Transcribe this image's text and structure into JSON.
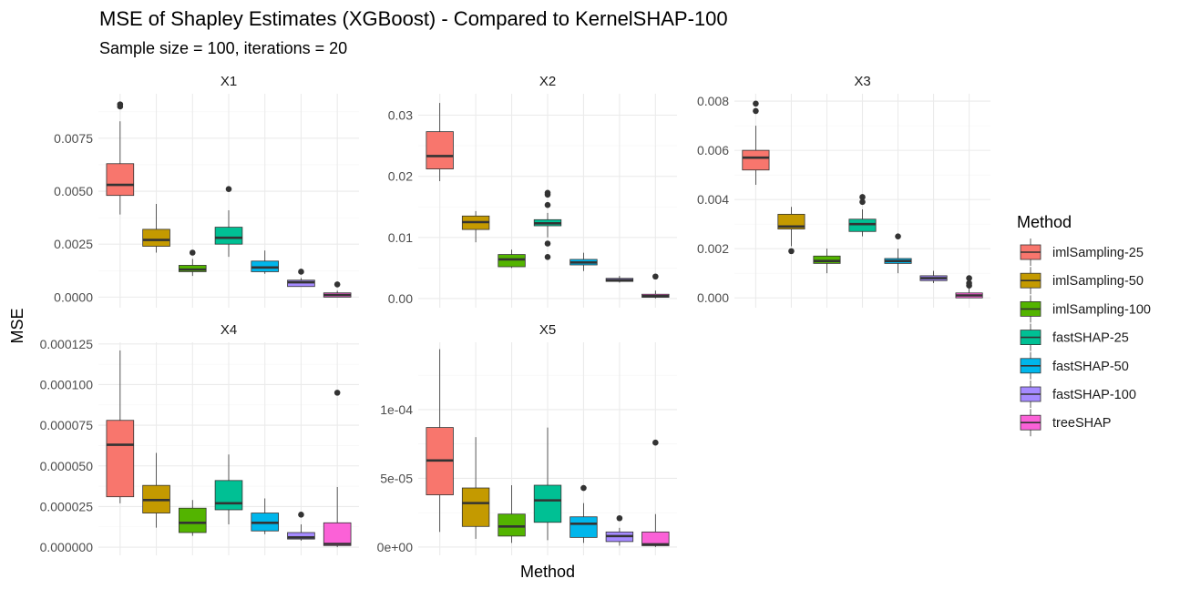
{
  "chart_data": {
    "type": "boxplot",
    "title": "MSE of Shapley Estimates (XGBoost) - Compared to KernelSHAP-100",
    "subtitle": "Sample size = 100, iterations = 20",
    "xlabel": "Method",
    "ylabel": "MSE",
    "legend": {
      "title": "Method",
      "position": "right",
      "items": [
        {
          "label": "imlSampling-25",
          "color": "#F8766D"
        },
        {
          "label": "imlSampling-50",
          "color": "#C49A00"
        },
        {
          "label": "imlSampling-100",
          "color": "#53B400"
        },
        {
          "label": "fastSHAP-25",
          "color": "#00C094"
        },
        {
          "label": "fastSHAP-50",
          "color": "#00B6EB"
        },
        {
          "label": "fastSHAP-100",
          "color": "#A58AFF"
        },
        {
          "label": "treeSHAP",
          "color": "#FB61D7"
        }
      ]
    },
    "panels": [
      {
        "name": "X1",
        "ylim": [
          -0.0005,
          0.0096
        ],
        "ticks": [
          0,
          0.0025,
          0.005,
          0.0075
        ],
        "tick_labels": [
          "0.0000",
          "0.0025",
          "0.0050",
          "0.0075"
        ],
        "boxes": [
          {
            "min": 0.0039,
            "q1": 0.0048,
            "median": 0.0053,
            "q3": 0.0063,
            "max": 0.0083,
            "outliers": [
              0.009,
              0.0091
            ]
          },
          {
            "min": 0.0021,
            "q1": 0.0024,
            "median": 0.0027,
            "q3": 0.0032,
            "max": 0.0044,
            "outliers": []
          },
          {
            "min": 0.001,
            "q1": 0.0012,
            "median": 0.0013,
            "q3": 0.0015,
            "max": 0.0018,
            "outliers": [
              0.0021
            ]
          },
          {
            "min": 0.0019,
            "q1": 0.0025,
            "median": 0.0028,
            "q3": 0.0033,
            "max": 0.0041,
            "outliers": [
              0.0051
            ]
          },
          {
            "min": 0.0011,
            "q1": 0.0012,
            "median": 0.0014,
            "q3": 0.0017,
            "max": 0.0022,
            "outliers": []
          },
          {
            "min": 0.0005,
            "q1": 0.0005,
            "median": 0.0007,
            "q3": 0.0008,
            "max": 0.0009,
            "outliers": [
              0.0012
            ]
          },
          {
            "min": 0.0,
            "q1": 0.0,
            "median": 0.0001,
            "q3": 0.0002,
            "max": 0.0003,
            "outliers": [
              0.0006
            ]
          }
        ]
      },
      {
        "name": "X2",
        "ylim": [
          -0.0015,
          0.0335
        ],
        "ticks": [
          0,
          0.01,
          0.02,
          0.03
        ],
        "tick_labels": [
          "0.00",
          "0.01",
          "0.02",
          "0.03"
        ],
        "boxes": [
          {
            "min": 0.0192,
            "q1": 0.0212,
            "median": 0.0233,
            "q3": 0.0273,
            "max": 0.032,
            "outliers": []
          },
          {
            "min": 0.0092,
            "q1": 0.0113,
            "median": 0.0125,
            "q3": 0.0135,
            "max": 0.0143,
            "outliers": []
          },
          {
            "min": 0.005,
            "q1": 0.0052,
            "median": 0.0064,
            "q3": 0.0072,
            "max": 0.008,
            "outliers": []
          },
          {
            "min": 0.01,
            "q1": 0.0119,
            "median": 0.0123,
            "q3": 0.0129,
            "max": 0.014,
            "outliers": [
              0.0068,
              0.009,
              0.0153,
              0.017,
              0.0173
            ]
          },
          {
            "min": 0.0045,
            "q1": 0.0055,
            "median": 0.0059,
            "q3": 0.0064,
            "max": 0.0075,
            "outliers": []
          },
          {
            "min": 0.0026,
            "q1": 0.0028,
            "median": 0.003,
            "q3": 0.0033,
            "max": 0.0037,
            "outliers": []
          },
          {
            "min": 0.0,
            "q1": 0.0002,
            "median": 0.0004,
            "q3": 0.0007,
            "max": 0.0013,
            "outliers": [
              0.0036
            ]
          }
        ]
      },
      {
        "name": "X3",
        "ylim": [
          -0.0004,
          0.0083
        ],
        "ticks": [
          0,
          0.002,
          0.004,
          0.006,
          0.008
        ],
        "tick_labels": [
          "0.000",
          "0.002",
          "0.004",
          "0.006",
          "0.008"
        ],
        "boxes": [
          {
            "min": 0.0046,
            "q1": 0.0052,
            "median": 0.0057,
            "q3": 0.006,
            "max": 0.007,
            "outliers": [
              0.0076,
              0.0079
            ]
          },
          {
            "min": 0.0021,
            "q1": 0.0028,
            "median": 0.0029,
            "q3": 0.0034,
            "max": 0.0037,
            "outliers": [
              0.0019
            ]
          },
          {
            "min": 0.001,
            "q1": 0.0014,
            "median": 0.0015,
            "q3": 0.0017,
            "max": 0.002,
            "outliers": []
          },
          {
            "min": 0.0025,
            "q1": 0.0027,
            "median": 0.003,
            "q3": 0.0032,
            "max": 0.0036,
            "outliers": [
              0.0039,
              0.0041
            ]
          },
          {
            "min": 0.001,
            "q1": 0.0014,
            "median": 0.0015,
            "q3": 0.0016,
            "max": 0.002,
            "outliers": [
              0.0025
            ]
          },
          {
            "min": 0.0006,
            "q1": 0.0007,
            "median": 0.0008,
            "q3": 0.0009,
            "max": 0.0011,
            "outliers": []
          },
          {
            "min": 0.0,
            "q1": 0.0,
            "median": 0.0001,
            "q3": 0.0002,
            "max": 0.0004,
            "outliers": [
              0.0005,
              0.0006,
              0.0008
            ]
          }
        ]
      },
      {
        "name": "X4",
        "ylim": [
          -5e-06,
          0.000126
        ],
        "ticks": [
          0,
          2.5e-05,
          5e-05,
          7.5e-05,
          0.0001,
          0.000125
        ],
        "tick_labels": [
          "0.000000",
          "0.000025",
          "0.000050",
          "0.000075",
          "0.000100",
          "0.000125"
        ],
        "boxes": [
          {
            "min": 2.7e-05,
            "q1": 3.1e-05,
            "median": 6.3e-05,
            "q3": 7.8e-05,
            "max": 0.000121,
            "outliers": []
          },
          {
            "min": 1.2e-05,
            "q1": 2.1e-05,
            "median": 2.9e-05,
            "q3": 3.8e-05,
            "max": 5.8e-05,
            "outliers": []
          },
          {
            "min": 7e-06,
            "q1": 9e-06,
            "median": 1.5e-05,
            "q3": 2.4e-05,
            "max": 2.9e-05,
            "outliers": []
          },
          {
            "min": 1.4e-05,
            "q1": 2.3e-05,
            "median": 2.7e-05,
            "q3": 4.1e-05,
            "max": 5.7e-05,
            "outliers": []
          },
          {
            "min": 8e-06,
            "q1": 1e-05,
            "median": 1.5e-05,
            "q3": 2.1e-05,
            "max": 3e-05,
            "outliers": []
          },
          {
            "min": 4e-06,
            "q1": 5e-06,
            "median": 6e-06,
            "q3": 9e-06,
            "max": 1.4e-05,
            "outliers": [
              2e-05
            ]
          },
          {
            "min": 0.0,
            "q1": 1e-06,
            "median": 2e-06,
            "q3": 1.5e-05,
            "max": 3.7e-05,
            "outliers": [
              9.5e-05
            ]
          }
        ]
      },
      {
        "name": "X5",
        "ylim": [
          -6e-06,
          0.000149
        ],
        "ticks": [
          0,
          5e-05,
          0.0001
        ],
        "tick_labels": [
          "0e+00",
          "5e-05",
          "1e-04"
        ],
        "boxes": [
          {
            "min": 1.1e-05,
            "q1": 3.8e-05,
            "median": 6.3e-05,
            "q3": 8.7e-05,
            "max": 0.000144,
            "outliers": []
          },
          {
            "min": 6e-06,
            "q1": 1.5e-05,
            "median": 3.2e-05,
            "q3": 4.3e-05,
            "max": 8e-05,
            "outliers": []
          },
          {
            "min": 3e-06,
            "q1": 8e-06,
            "median": 1.5e-05,
            "q3": 2.4e-05,
            "max": 4.5e-05,
            "outliers": []
          },
          {
            "min": 5e-06,
            "q1": 1.8e-05,
            "median": 3.4e-05,
            "q3": 4.5e-05,
            "max": 8.7e-05,
            "outliers": []
          },
          {
            "min": 3e-06,
            "q1": 7e-06,
            "median": 1.7e-05,
            "q3": 2.2e-05,
            "max": 3.2e-05,
            "outliers": [
              4.3e-05
            ]
          },
          {
            "min": 1e-06,
            "q1": 4e-06,
            "median": 8e-06,
            "q3": 1.1e-05,
            "max": 1.4e-05,
            "outliers": [
              2.1e-05
            ]
          },
          {
            "min": 0.0,
            "q1": 1e-06,
            "median": 2e-06,
            "q3": 1.1e-05,
            "max": 2.4e-05,
            "outliers": [
              7.6e-05
            ]
          }
        ]
      }
    ]
  }
}
